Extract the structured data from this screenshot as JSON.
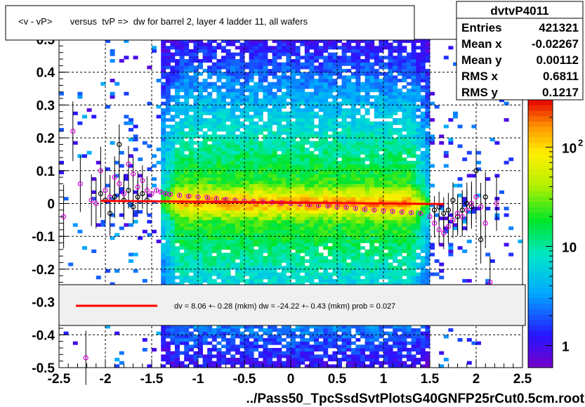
{
  "chart_data": {
    "type": "heatmap",
    "title": "<v - vP>       versus  tvP =>  dw for barrel 2, layer 4 ladder 11, all wafers",
    "xlabel": "../Pass50_TpcSsdSvtPlotsG40GNFP25rCut0.5cm.root",
    "ylabel": "",
    "xlim": [
      -2.5,
      2.5
    ],
    "ylim": [
      -0.5,
      0.5
    ],
    "x_ticks": [
      "-2.5",
      "-2",
      "-1.5",
      "-1",
      "-0.5",
      "0",
      "0.5",
      "1",
      "1.5",
      "2",
      "2.5"
    ],
    "y_ticks": [
      "-0.5",
      "-0.4",
      "-0.3",
      "-0.2",
      "-0.1",
      "0",
      "0.1",
      "0.2",
      "0.3",
      "0.4",
      "0.5"
    ],
    "grid": true,
    "colorbar": {
      "scale": "log",
      "labels": [
        "1",
        "10",
        "10"
      ],
      "label_exponents": [
        "",
        "",
        "2"
      ],
      "min": 0.6,
      "max": 300
    },
    "stats": {
      "name": "dvtvP4011",
      "rows": [
        {
          "label": "Entries",
          "value": "421321"
        },
        {
          "label": "Mean x",
          "value": "-0.02267"
        },
        {
          "label": "Mean y",
          "value": "0.00112"
        },
        {
          "label": "RMS x",
          "value": "0.6811"
        },
        {
          "label": "RMS y",
          "value": "0.1217"
        }
      ]
    },
    "fit": {
      "legend_text": "dv =    8.06 +-  0.28 (mkm) dw =  -24.22 +-  0.43 (mkm) prob = 0.027",
      "line_color": "#ff0000",
      "x": [
        -2.05,
        1.65
      ],
      "y": [
        0.0081,
        -0.0015
      ]
    },
    "band": {
      "x_range": [
        -1.4,
        1.5
      ],
      "core_y": 0.0,
      "core_halfwidth": 0.02,
      "mid_halfwidth": 0.06,
      "spread_halfwidth": 0.5
    },
    "profile_points_magenta": {
      "x": [
        -2.45,
        -2.35,
        -2.27,
        -2.21,
        -2.15,
        -2.1,
        -2.05,
        -2.0,
        -1.95,
        -1.9,
        -1.85,
        -1.8,
        -1.75,
        -1.7,
        -1.65,
        -1.6,
        -1.55,
        -1.5,
        -1.45,
        -1.4,
        -1.35,
        -1.3,
        -1.2,
        -1.1,
        -1.0,
        -0.9,
        -0.8,
        -0.7,
        -0.6,
        -0.5,
        -0.4,
        -0.3,
        -0.2,
        -0.1,
        0.0,
        0.1,
        0.2,
        0.3,
        0.4,
        0.5,
        0.6,
        0.7,
        0.8,
        0.9,
        1.0,
        1.1,
        1.2,
        1.3,
        1.4,
        1.5,
        1.55,
        1.6,
        1.65,
        1.7,
        1.75,
        1.8,
        1.85,
        1.9,
        1.95,
        2.0,
        2.05,
        2.1,
        2.15,
        2.22
      ],
      "y": [
        -0.04,
        0.22,
        0.06,
        -0.47,
        0.01,
        0.0,
        0.1,
        0.04,
        0.02,
        0.08,
        0.06,
        0.03,
        0.12,
        0.09,
        0.05,
        0.07,
        0.04,
        0.03,
        0.04,
        0.035,
        0.03,
        0.028,
        0.025,
        0.022,
        0.02,
        0.018,
        0.015,
        0.012,
        0.01,
        0.008,
        0.006,
        0.005,
        0.004,
        0.002,
        0.0,
        -0.002,
        -0.004,
        -0.006,
        -0.008,
        -0.01,
        -0.012,
        -0.015,
        -0.018,
        -0.02,
        -0.022,
        -0.024,
        -0.026,
        -0.028,
        -0.03,
        -0.04,
        -0.06,
        -0.08,
        -0.09,
        -0.07,
        -0.05,
        -0.03,
        -0.04,
        -0.02,
        0.0,
        0.02,
        -0.01,
        -0.06,
        -0.24,
        0.0
      ]
    },
    "profile_points_black": {
      "x": [
        -2.05,
        -2.0,
        -1.95,
        -1.9,
        -1.85,
        -1.8,
        -1.75,
        -1.7,
        -1.65,
        -1.6,
        -1.55,
        1.55,
        1.6,
        1.65,
        1.7,
        1.75,
        1.8,
        1.85,
        1.9,
        1.95,
        2.0,
        2.05,
        2.1
      ],
      "y": [
        0.03,
        0.01,
        -0.03,
        0.02,
        0.18,
        0.01,
        0.04,
        -0.01,
        0.02,
        0.03,
        0.01,
        -0.02,
        -0.01,
        -0.03,
        -0.02,
        0.01,
        -0.04,
        -0.02,
        0.0,
        -0.01,
        0.1,
        -0.11,
        0.02
      ]
    }
  }
}
